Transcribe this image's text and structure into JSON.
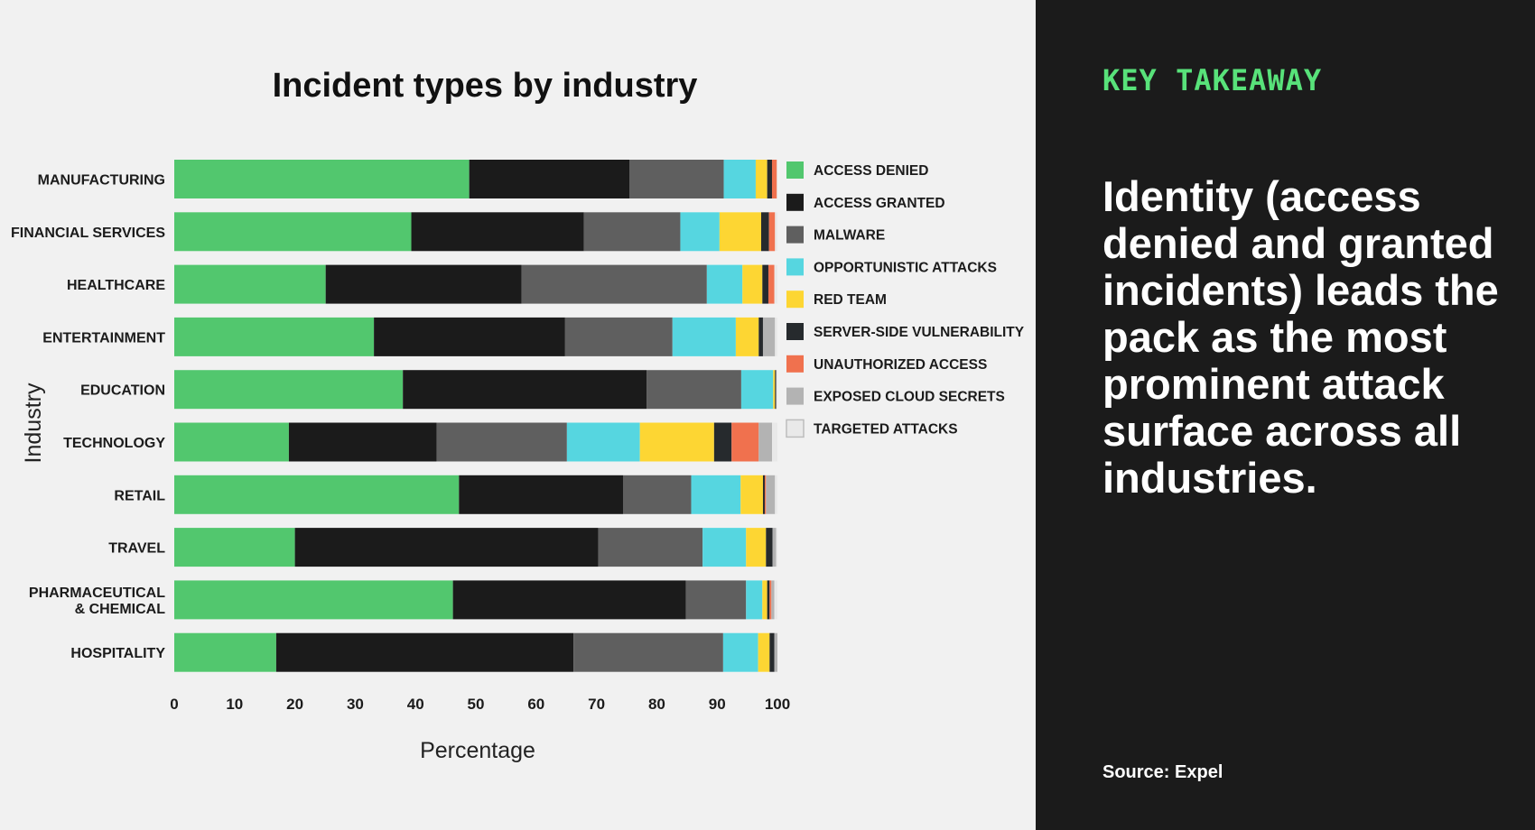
{
  "chart_data": {
    "type": "bar",
    "orientation": "horizontal",
    "stacked": true,
    "title": "Incident types by industry",
    "xlabel": "Percentage",
    "ylabel": "Industry",
    "xlim": [
      0,
      100
    ],
    "xticks": [
      "0",
      "10",
      "20",
      "30",
      "40",
      "50",
      "60",
      "70",
      "80",
      "90",
      "100"
    ],
    "grid": false,
    "legend_position": "right",
    "categories": [
      "MANUFACTURING",
      "FINANCIAL SERVICES",
      "HEALTHCARE",
      "ENTERTAINMENT",
      "EDUCATION",
      "TECHNOLOGY",
      "RETAIL",
      "TRAVEL",
      "PHARMACEUTICAL & CHEMICAL",
      "HOSPITALITY"
    ],
    "series": [
      {
        "name": "ACCESS DENIED",
        "color": "#52c76e",
        "values": [
          48.9,
          39.3,
          25.1,
          33.1,
          37.9,
          19.0,
          47.2,
          20.0,
          46.2,
          16.9
        ]
      },
      {
        "name": "ACCESS GRANTED",
        "color": "#1b1b1b",
        "values": [
          26.6,
          28.6,
          32.5,
          31.7,
          40.4,
          24.5,
          27.2,
          50.3,
          38.6,
          49.3
        ]
      },
      {
        "name": "MALWARE",
        "color": "#5f5f5f",
        "values": [
          15.6,
          16.0,
          30.7,
          17.8,
          15.7,
          21.6,
          11.3,
          17.3,
          10.0,
          24.8
        ]
      },
      {
        "name": "OPPORTUNISTIC ATTACKS",
        "color": "#56d6e0",
        "values": [
          5.3,
          6.5,
          5.9,
          10.5,
          5.3,
          12.1,
          8.2,
          7.2,
          2.7,
          5.8
        ]
      },
      {
        "name": "RED TEAM",
        "color": "#fdd633",
        "values": [
          1.9,
          6.9,
          3.3,
          3.8,
          0.3,
          12.3,
          3.7,
          3.3,
          0.8,
          1.9
        ]
      },
      {
        "name": "SERVER-SIDE VULNERABILITY",
        "color": "#262a2d",
        "values": [
          0.8,
          1.3,
          1.0,
          0.7,
          0.2,
          2.9,
          0.3,
          1.1,
          0.4,
          0.8
        ]
      },
      {
        "name": "UNAUTHORIZED ACCESS",
        "color": "#f0714e",
        "values": [
          0.8,
          1.0,
          1.0,
          0.0,
          0.0,
          4.5,
          0.2,
          0.0,
          0.3,
          0.0
        ]
      },
      {
        "name": "EXPOSED CLOUD SECRETS",
        "color": "#b3b3b3",
        "values": [
          0.0,
          0.0,
          0.0,
          2.0,
          0.0,
          2.2,
          1.5,
          0.6,
          0.5,
          0.5
        ]
      },
      {
        "name": "TARGETED ATTACKS",
        "color": "#e9e9e9",
        "values": [
          0.1,
          0.4,
          0.5,
          0.4,
          0.2,
          0.9,
          0.4,
          0.2,
          0.5,
          0.0
        ]
      }
    ]
  },
  "takeaway": {
    "heading": "KEY TAKEAWAY",
    "text": "Identity (access denied and granted incidents) leads the pack as the most prominent attack surface across all industries.",
    "source": "Source: Expel"
  },
  "colors": {
    "chart_background": "#f1f1f1",
    "panel_background": "#1b1b1b",
    "accent": "#58e27a"
  }
}
